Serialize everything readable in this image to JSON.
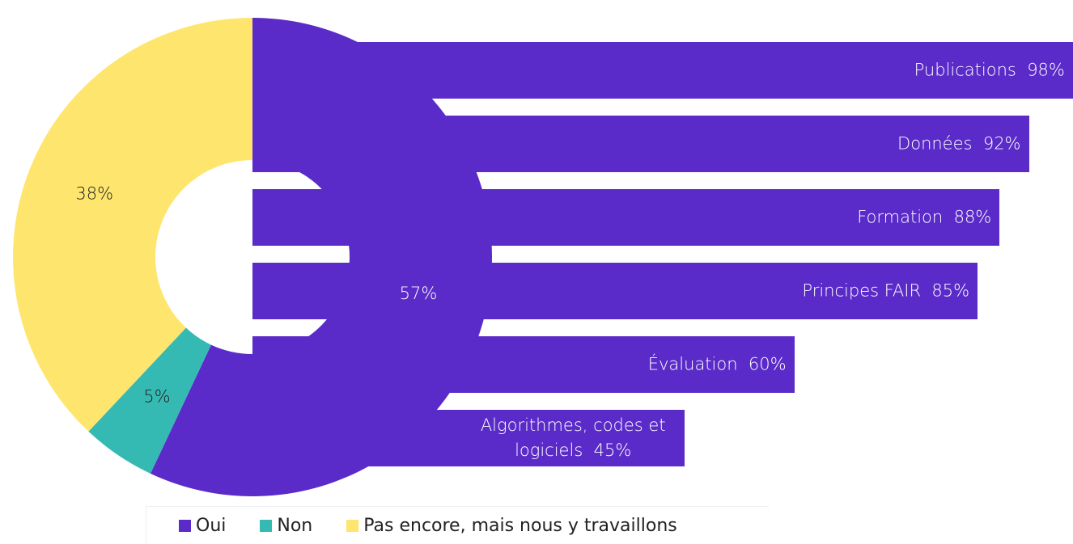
{
  "chart_data": [
    {
      "type": "pie",
      "categories": [
        "Oui",
        "Non",
        "Pas encore, mais nous y travaillons"
      ],
      "values": [
        57,
        5,
        38
      ],
      "value_labels": [
        "57%",
        "5%",
        "38%"
      ],
      "colors": [
        "#5b2bc9",
        "#35bab3",
        "#fee66e"
      ]
    },
    {
      "type": "bar",
      "categories": [
        "Publications",
        "Données",
        "Formation",
        "Principes FAIR",
        "Évaluation",
        "Algorithmes, codes et logiciels"
      ],
      "values": [
        98,
        92,
        88,
        85,
        60,
        45
      ],
      "value_labels": [
        "98%",
        "92%",
        "88%",
        "85%",
        "60%",
        "45%"
      ],
      "color": "#5b2bc9",
      "xlim": [
        0,
        100
      ]
    }
  ]
}
